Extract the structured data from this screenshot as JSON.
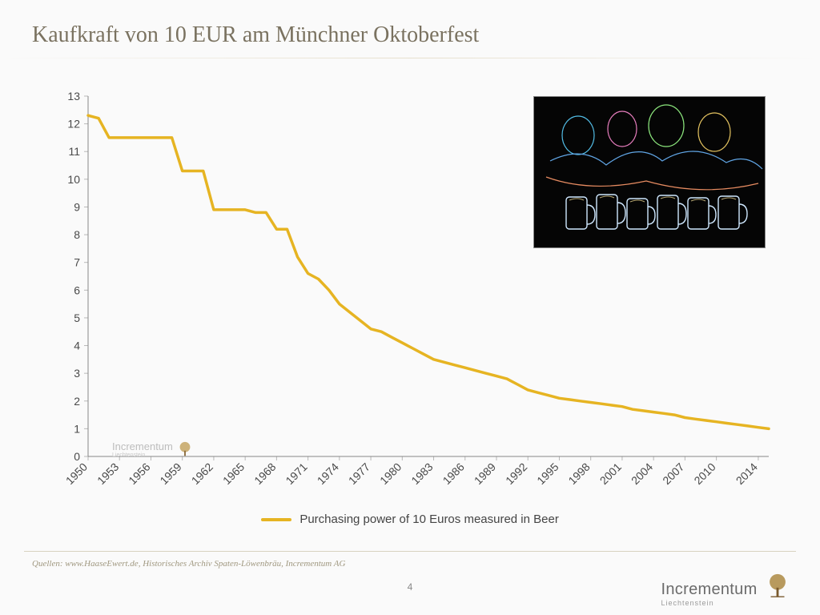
{
  "title": "Kaufkraft von 10 EUR am Münchner Oktoberfest",
  "legend_label": "Purchasing power of 10 Euros measured in Beer",
  "quellen": "Quellen: www.HaaseEwert.de, Historisches Archiv Spaten-Löwenbräu, Incrementum AG",
  "page_number": "4",
  "brand_name": "Incrementum",
  "brand_sub": "Liechtenstein",
  "chart": {
    "type": "line",
    "series_color": "#e6b422",
    "series_width": 3.5,
    "background_color": "#ffffff",
    "axis_color": "#888888",
    "tick_color": "#b8b8b8",
    "label_color": "#4a4a4a",
    "label_fontsize": 14,
    "ylim": [
      0,
      13
    ],
    "ytick_step": 1,
    "x_start": 1950,
    "x_end": 2015,
    "x_labels": [
      1950,
      1953,
      1956,
      1959,
      1962,
      1965,
      1968,
      1971,
      1974,
      1977,
      1980,
      1983,
      1986,
      1989,
      1992,
      1995,
      1998,
      2001,
      2004,
      2007,
      2010,
      2014
    ],
    "years": [
      1950,
      1951,
      1952,
      1953,
      1954,
      1955,
      1956,
      1957,
      1958,
      1959,
      1960,
      1961,
      1962,
      1963,
      1964,
      1965,
      1966,
      1967,
      1968,
      1969,
      1970,
      1971,
      1972,
      1973,
      1974,
      1975,
      1976,
      1977,
      1978,
      1979,
      1980,
      1981,
      1982,
      1983,
      1984,
      1985,
      1986,
      1987,
      1988,
      1989,
      1990,
      1991,
      1992,
      1993,
      1994,
      1995,
      1996,
      1997,
      1998,
      1999,
      2000,
      2001,
      2002,
      2003,
      2004,
      2005,
      2006,
      2007,
      2008,
      2009,
      2010,
      2011,
      2012,
      2013,
      2014,
      2015
    ],
    "values": [
      12.3,
      12.2,
      11.5,
      11.5,
      11.5,
      11.5,
      11.5,
      11.5,
      11.5,
      10.3,
      10.3,
      10.3,
      8.9,
      8.9,
      8.9,
      8.9,
      8.8,
      8.8,
      8.2,
      8.2,
      7.2,
      6.6,
      6.4,
      6.0,
      5.5,
      5.2,
      4.9,
      4.6,
      4.5,
      4.3,
      4.1,
      3.9,
      3.7,
      3.5,
      3.4,
      3.3,
      3.2,
      3.1,
      3.0,
      2.9,
      2.8,
      2.6,
      2.4,
      2.3,
      2.2,
      2.1,
      2.05,
      2.0,
      1.95,
      1.9,
      1.85,
      1.8,
      1.7,
      1.65,
      1.6,
      1.55,
      1.5,
      1.4,
      1.35,
      1.3,
      1.25,
      1.2,
      1.15,
      1.1,
      1.05,
      1.0
    ]
  }
}
